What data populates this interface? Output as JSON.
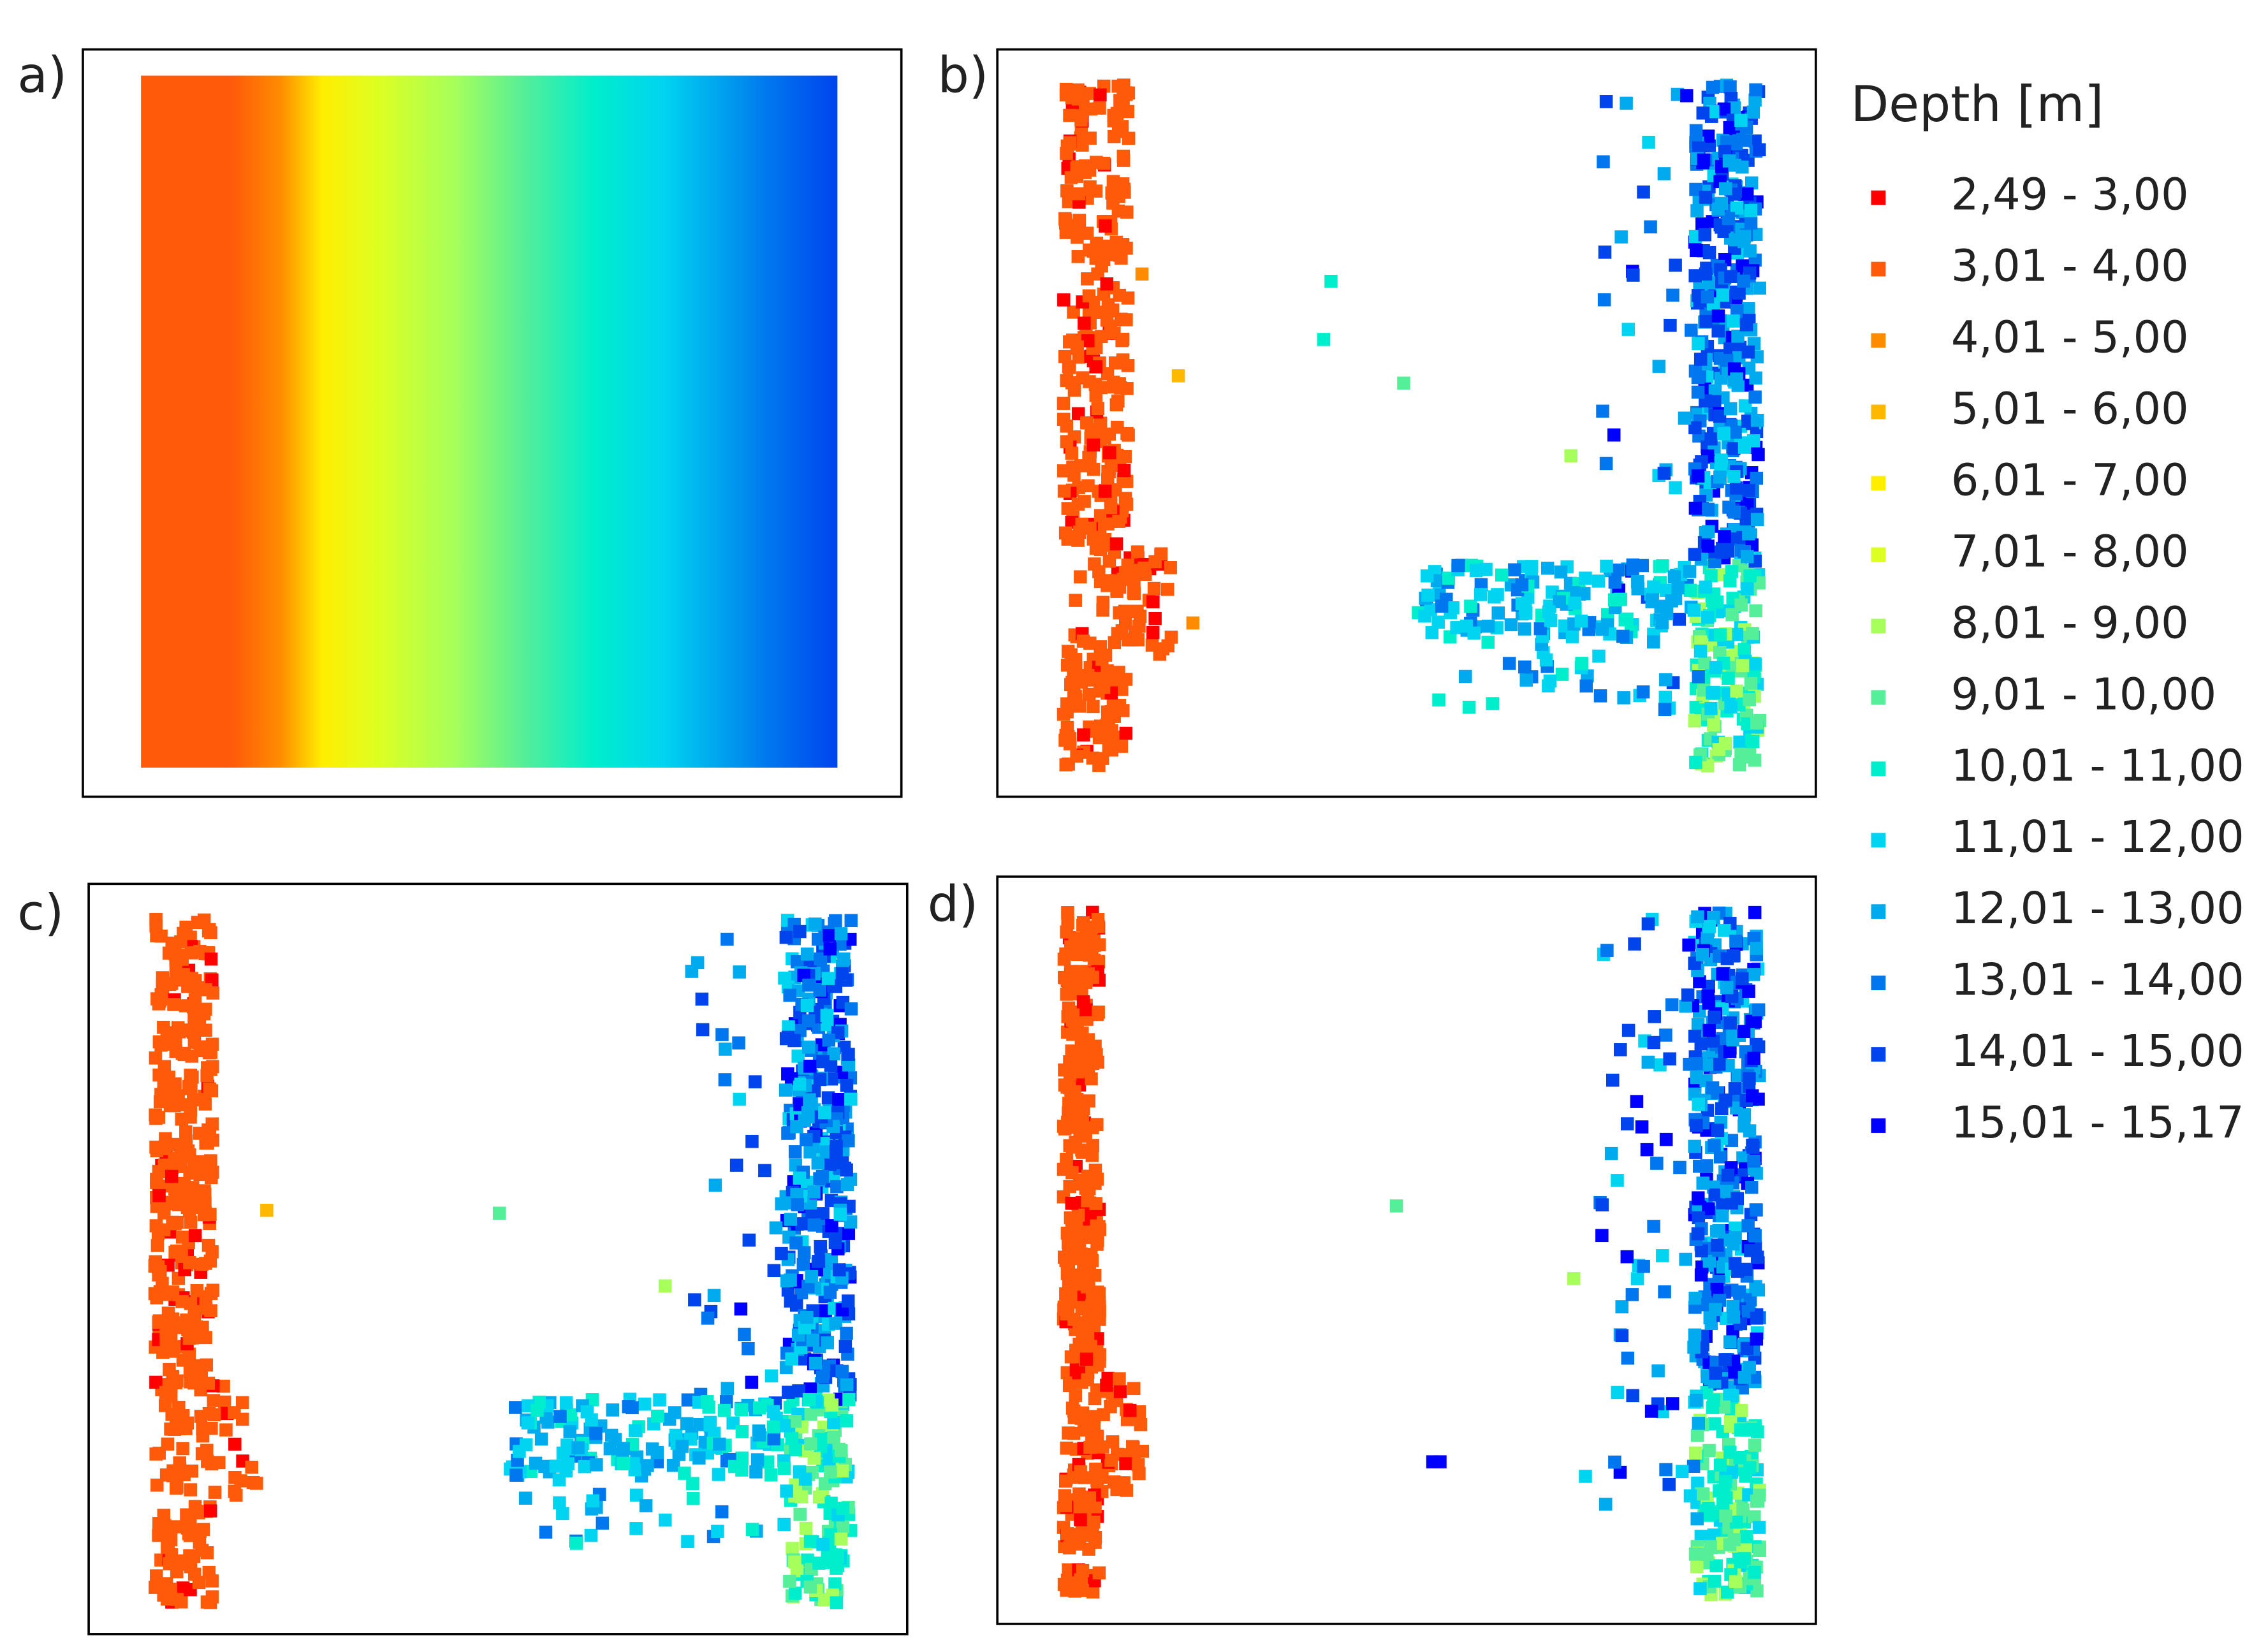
{
  "panels": [
    {
      "label": "a)"
    },
    {
      "label": "b)"
    },
    {
      "label": "c)"
    },
    {
      "label": "d)"
    }
  ],
  "legend": {
    "title": "Depth [m]",
    "items": [
      {
        "label": "2,49 - 3,00",
        "color": "#ff0000"
      },
      {
        "label": "3,01 - 4,00",
        "color": "#ff5a0a"
      },
      {
        "label": "4,01 - 5,00",
        "color": "#ff8c00"
      },
      {
        "label": "5,01 - 6,00",
        "color": "#ffb800"
      },
      {
        "label": "6,01 - 7,00",
        "color": "#ffee00"
      },
      {
        "label": "7,01 - 8,00",
        "color": "#ddff22"
      },
      {
        "label": "8,01 - 9,00",
        "color": "#a6ff5a"
      },
      {
        "label": "9,01 - 10,00",
        "color": "#55ee99"
      },
      {
        "label": "10,01 - 11,00",
        "color": "#00eecc"
      },
      {
        "label": "11,01 - 12,00",
        "color": "#00d4f0"
      },
      {
        "label": "12,01 - 13,00",
        "color": "#00aaee"
      },
      {
        "label": "13,01 - 14,00",
        "color": "#0077ee"
      },
      {
        "label": "14,01 - 15,00",
        "color": "#0044ee"
      },
      {
        "label": "15,01 - 15,17",
        "color": "#0000ff"
      }
    ]
  }
}
